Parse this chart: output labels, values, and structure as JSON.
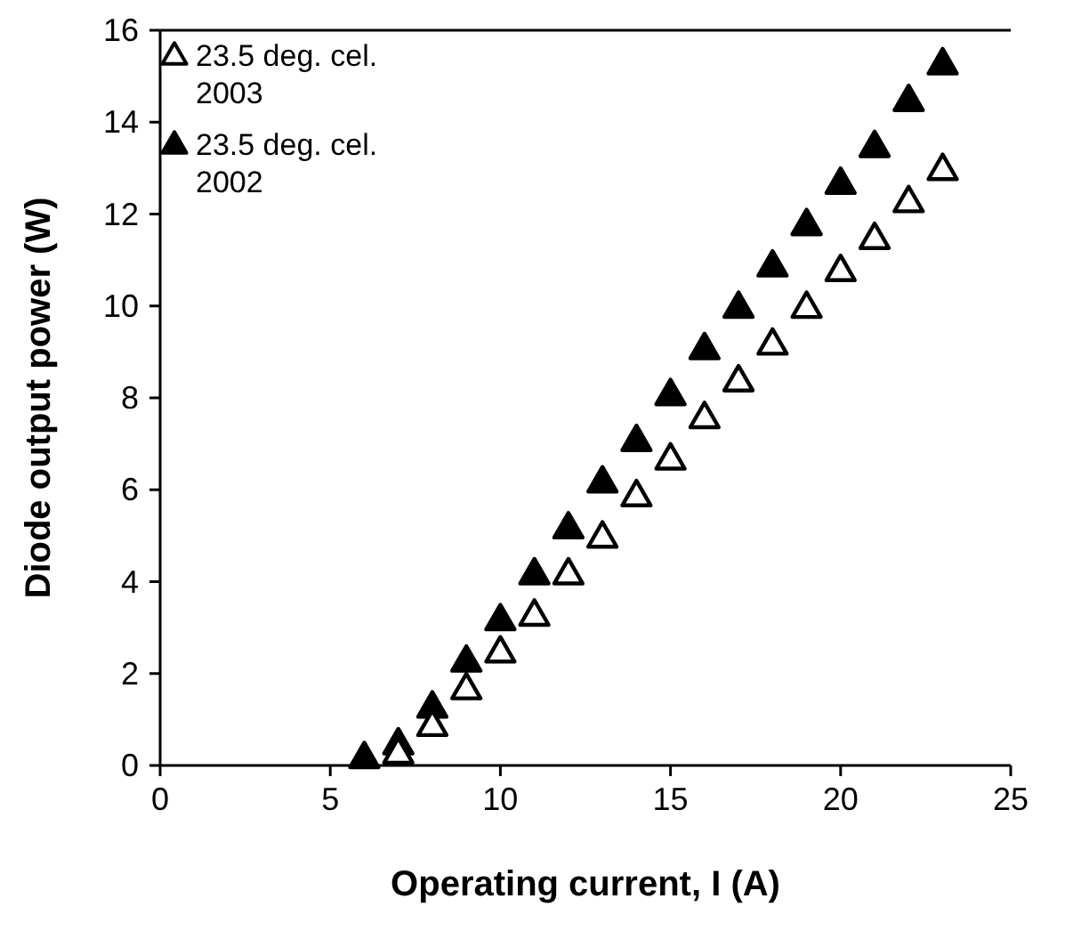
{
  "chart_data": {
    "type": "scatter",
    "xlabel": "Operating current, I (A)",
    "ylabel": "Diode output power (W)",
    "x": [
      6,
      7,
      8,
      9,
      10,
      11,
      12,
      13,
      14,
      15,
      16,
      17,
      18,
      19,
      20,
      21,
      22,
      23
    ],
    "series": [
      {
        "name": "23.5 deg. cel.\n2003",
        "color": "#ffffff",
        "values": [
          null,
          0.2,
          0.8,
          1.6,
          2.4,
          3.2,
          4.1,
          4.9,
          5.8,
          6.6,
          7.5,
          8.3,
          9.1,
          9.9,
          10.7,
          11.4,
          12.2,
          12.9
        ]
      },
      {
        "name": "23.5 deg. cel.\n2002",
        "color": "#000000",
        "values": [
          0.1,
          0.4,
          1.2,
          2.2,
          3.1,
          4.1,
          5.1,
          6.1,
          7.0,
          8.0,
          9.0,
          9.9,
          10.8,
          11.7,
          12.6,
          13.4,
          14.4,
          15.2
        ]
      }
    ],
    "xlim": [
      0,
      25
    ],
    "xticks": [
      0,
      5,
      10,
      15,
      20,
      25
    ],
    "ylim": [
      0,
      16
    ],
    "yticks": [
      0,
      2,
      4,
      6,
      8,
      10,
      12,
      14,
      16
    ],
    "marker": "triangle",
    "legend": "top left",
    "grid": false
  }
}
